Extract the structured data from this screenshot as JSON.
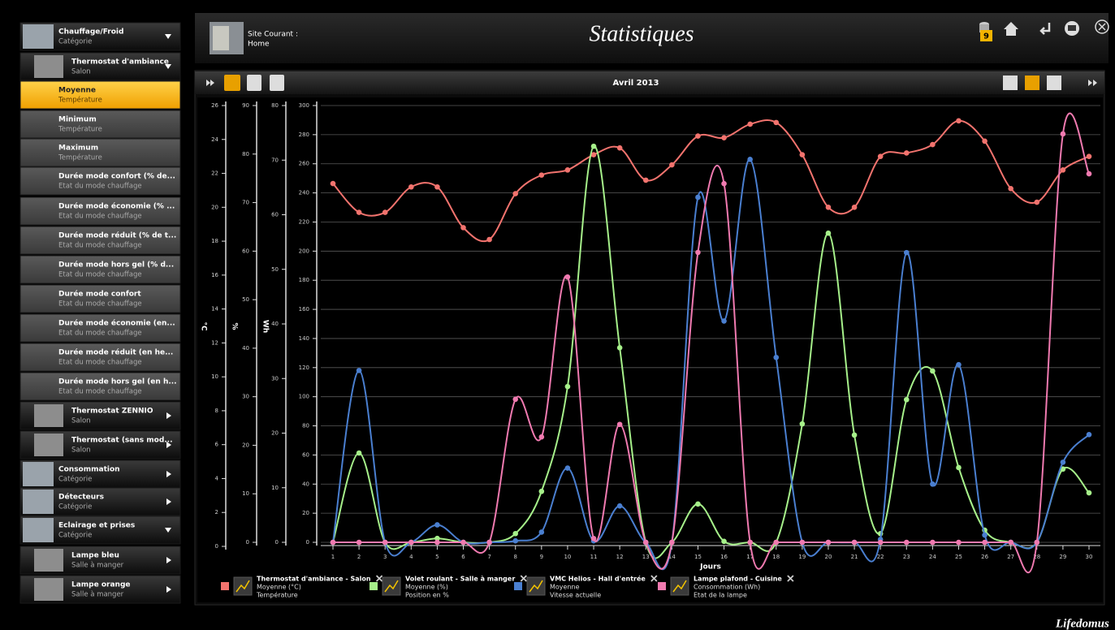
{
  "header": {
    "site_label": "Site Courant :",
    "site_name": "Home",
    "title": "Statistiques",
    "badge": "9"
  },
  "sidebar": {
    "items": [
      {
        "title": "Chauffage/Froid",
        "subtitle": "Catégorie"
      },
      {
        "title": "Thermostat d'ambiance",
        "subtitle": "Salon"
      },
      {
        "title": "Moyenne",
        "subtitle": "Température"
      },
      {
        "title": "Minimum",
        "subtitle": "Température"
      },
      {
        "title": "Maximum",
        "subtitle": "Température"
      },
      {
        "title": "Durée mode confort (% de...",
        "subtitle": "Etat du mode chauffage"
      },
      {
        "title": "Durée mode économie (% ...",
        "subtitle": "Etat du mode chauffage"
      },
      {
        "title": "Durée mode réduit (% de t...",
        "subtitle": "Etat du mode chauffage"
      },
      {
        "title": "Durée mode hors gel (% d...",
        "subtitle": "Etat du mode chauffage"
      },
      {
        "title": "Durée mode confort",
        "subtitle": "Etat du mode chauffage"
      },
      {
        "title": "Durée mode économie (en...",
        "subtitle": "Etat du mode chauffage"
      },
      {
        "title": "Durée mode réduit (en he...",
        "subtitle": "Etat du mode chauffage"
      },
      {
        "title": "Durée mode hors gel (en h...",
        "subtitle": "Etat du mode chauffage"
      },
      {
        "title": "Thermostat ZENNIO",
        "subtitle": "Salon"
      },
      {
        "title": "Thermostat (sans mod...",
        "subtitle": "Salon"
      },
      {
        "title": "Consommation",
        "subtitle": "Catégorie"
      },
      {
        "title": "Détecteurs",
        "subtitle": "Catégorie"
      },
      {
        "title": "Eclairage et prises",
        "subtitle": "Catégorie"
      },
      {
        "title": "Lampe bleu",
        "subtitle": "Salle à manger"
      },
      {
        "title": "Lampe orange",
        "subtitle": "Salle à manger"
      }
    ]
  },
  "toolbar": {
    "period": "Avril 2013"
  },
  "chart_data": {
    "type": "line",
    "xlabel": "Jours",
    "x": [
      1,
      2,
      3,
      4,
      5,
      6,
      7,
      8,
      9,
      10,
      11,
      12,
      13,
      14,
      15,
      16,
      17,
      18,
      19,
      20,
      21,
      22,
      23,
      24,
      25,
      26,
      27,
      28,
      29,
      30
    ],
    "xlim": [
      1,
      30
    ],
    "xticks": [
      1,
      2,
      3,
      4,
      5,
      6,
      7,
      8,
      9,
      10,
      11,
      12,
      13,
      14,
      15,
      16,
      17,
      18,
      19,
      20,
      21,
      22,
      23,
      24,
      25,
      26,
      27,
      28,
      29,
      30
    ],
    "grid": true,
    "yaxes": [
      {
        "label": "°C",
        "lim": [
          0,
          26
        ],
        "ticks": [
          0,
          2,
          4,
          6,
          8,
          10,
          12,
          14,
          16,
          18,
          20,
          22,
          24,
          26
        ]
      },
      {
        "label": "%",
        "lim": [
          0,
          90
        ],
        "ticks": [
          0,
          10,
          20,
          30,
          40,
          50,
          60,
          70,
          80,
          90
        ]
      },
      {
        "label": "Wh",
        "lim": [
          0,
          80
        ],
        "ticks": [
          0,
          10,
          20,
          30,
          40,
          50,
          60,
          70,
          80
        ]
      },
      {
        "lim": [
          0,
          300
        ],
        "ticks": [
          0,
          20,
          40,
          60,
          80,
          100,
          120,
          140,
          160,
          180,
          200,
          220,
          240,
          260,
          280,
          300
        ]
      }
    ],
    "series": [
      {
        "name": "Thermostat d'ambiance - Salon",
        "measure": "Moyenne (°C)",
        "detail": "Température",
        "color": "#f2736e",
        "axis": 0,
        "values": [
          21.4,
          19.7,
          19.7,
          21.2,
          21.2,
          18.8,
          18.1,
          20.8,
          21.9,
          22.2,
          23.1,
          23.5,
          21.6,
          22.5,
          24.2,
          24.1,
          24.9,
          25,
          23.1,
          20,
          20,
          23,
          23.2,
          23.7,
          25.1,
          23.9,
          21.1,
          20.3,
          22.2,
          23
        ]
      },
      {
        "name": "Volet roulant - Salle à manger",
        "measure": "Moyenne (%)",
        "detail": "Position en %",
        "color": "#a6f08a",
        "axis": 1,
        "values": [
          0,
          18.4,
          0,
          0,
          0.8,
          0,
          0,
          1.8,
          10.5,
          32.1,
          81.6,
          40.1,
          0,
          0,
          7.9,
          0.2,
          0,
          0,
          24.4,
          63.7,
          22.1,
          1.8,
          29.4,
          35.3,
          15.4,
          2.5,
          0,
          0,
          15.1,
          10.2
        ]
      },
      {
        "name": "VMC Helios - Hall d'entrée",
        "measure": "Moyenne",
        "detail": "Vitesse actuelle",
        "color": "#4a7fd0",
        "axis": 3,
        "values": [
          0,
          118,
          0,
          0,
          12,
          0,
          0,
          1,
          7,
          51,
          1,
          25,
          0,
          0,
          237,
          152,
          263,
          127,
          0,
          0,
          0,
          2,
          199,
          40,
          122,
          5,
          0,
          0,
          55,
          74
        ]
      },
      {
        "name": "Lampe plafond - Cuisine",
        "measure": "Consommation (Wh)",
        "detail": "Etat de la lampe",
        "color": "#f07ab0",
        "axis": 2,
        "values": [
          0,
          0,
          0,
          0,
          0,
          0,
          0,
          26.2,
          19.3,
          48.6,
          0.7,
          21.6,
          0,
          0,
          53.1,
          65.7,
          0,
          0,
          0,
          0,
          0,
          0,
          0,
          0,
          0,
          0,
          0,
          0,
          74.8,
          67.5
        ]
      }
    ]
  },
  "footer": {
    "brand": "Lifedomus"
  }
}
